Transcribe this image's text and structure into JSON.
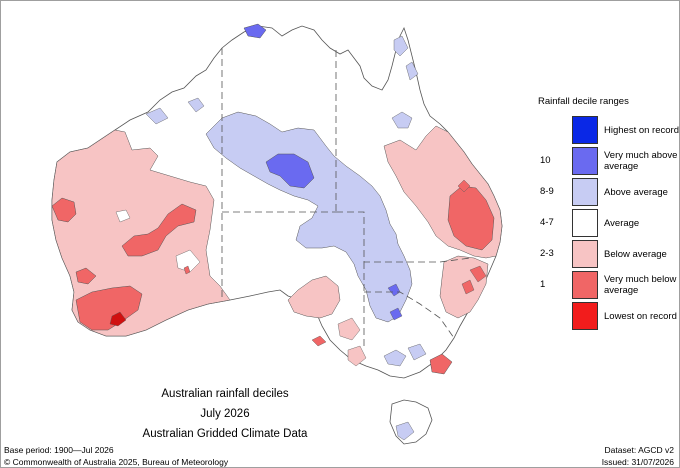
{
  "title": {
    "line1": "Australian rainfall deciles",
    "line2": "July 2026",
    "line3": "Australian Gridded Climate Data"
  },
  "legend": {
    "heading": "Rainfall decile ranges",
    "items": [
      {
        "decile": "",
        "label": "Highest on record",
        "color": "#0a28e6"
      },
      {
        "decile": "10",
        "label": "Very much above average",
        "color": "#6a6af0"
      },
      {
        "decile": "8-9",
        "label": "Above average",
        "color": "#c7ccf3"
      },
      {
        "decile": "4-7",
        "label": "Average",
        "color": "#ffffff"
      },
      {
        "decile": "2-3",
        "label": "Below average",
        "color": "#f7c4c4"
      },
      {
        "decile": "1",
        "label": "Very much below average",
        "color": "#f06666"
      },
      {
        "decile": "",
        "label": "Lowest on record",
        "color": "#f21c1c"
      }
    ]
  },
  "footer": {
    "base_period": "Base period: 1900—Jul 2026",
    "dataset": "Dataset: AGCD v2",
    "copyright": "© Commonwealth of Australia 2025, Bureau of Meteorology",
    "issued": "Issued: 31/07/2026"
  }
}
